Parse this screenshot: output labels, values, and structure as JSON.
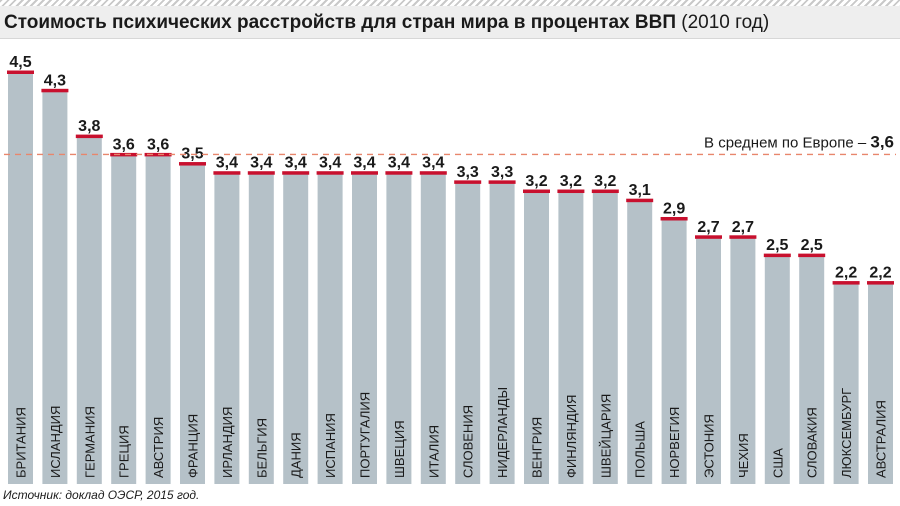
{
  "title": {
    "main": "Стоимость психических расстройств для стран мира в процентах ВВП",
    "year": "(2010 год)"
  },
  "source": "Источник: доклад ОЭСР, 2015 год.",
  "colors": {
    "bar": "#b5c1c8",
    "cap": "#c8102e",
    "average_line": "#e8866c",
    "text": "#1a1a1a"
  },
  "chart_data": {
    "type": "bar",
    "title": "Стоимость психических расстройств для стран мира в процентах ВВП (2010 год)",
    "categories": [
      "БРИТАНИЯ",
      "ИСЛАНДИЯ",
      "ГЕРМАНИЯ",
      "ГРЕЦИЯ",
      "АВСТРИЯ",
      "ФРАНЦИЯ",
      "ИРЛАНДИЯ",
      "БЕЛЬГИЯ",
      "ДАНИЯ",
      "ИСПАНИЯ",
      "ПОРТУГАЛИЯ",
      "ШВЕЦИЯ",
      "ИТАЛИЯ",
      "СЛОВЕНИЯ",
      "НИДЕРЛАНДЫ",
      "ВЕНГРИЯ",
      "ФИНЛЯНДИЯ",
      "ШВЕЙЦАРИЯ",
      "ПОЛЬША",
      "НОРВЕГИЯ",
      "ЭСТОНИЯ",
      "ЧЕХИЯ",
      "США",
      "СЛОВАКИЯ",
      "ЛЮКСЕМБУРГ",
      "АВСТРАЛИЯ"
    ],
    "values": [
      4.5,
      4.3,
      3.8,
      3.6,
      3.6,
      3.5,
      3.4,
      3.4,
      3.4,
      3.4,
      3.4,
      3.4,
      3.4,
      3.3,
      3.3,
      3.2,
      3.2,
      3.2,
      3.1,
      2.9,
      2.7,
      2.7,
      2.5,
      2.5,
      2.2,
      2.2
    ],
    "value_labels": [
      "4,5",
      "4,3",
      "3,8",
      "3,6",
      "3,6",
      "3,5",
      "3,4",
      "3,4",
      "3,4",
      "3,4",
      "3,4",
      "3,4",
      "3,4",
      "3,3",
      "3,3",
      "3,2",
      "3,2",
      "3,2",
      "3,1",
      "2,9",
      "2,7",
      "2,7",
      "2,5",
      "2,5",
      "2,2",
      "2,2"
    ],
    "ylim": [
      0,
      4.5
    ],
    "xlabel": "",
    "ylabel": "",
    "grid": false,
    "reference_line": {
      "value": 3.6,
      "label": "В среднем по Европе –",
      "value_label": "3,6"
    }
  }
}
